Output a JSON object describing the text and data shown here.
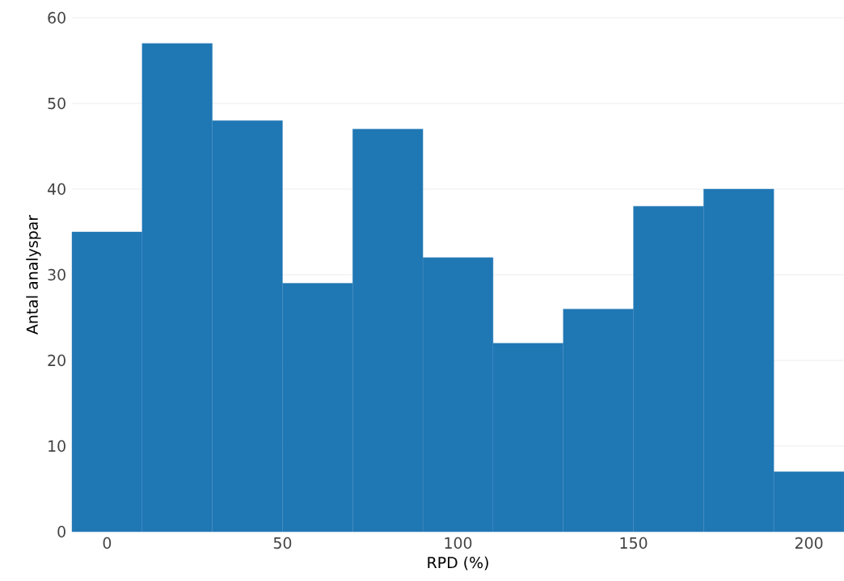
{
  "chart_data": {
    "type": "histogram",
    "xlabel": "RPD (%)",
    "ylabel": "Antal analyspar",
    "bins": [
      -10,
      10,
      30,
      50,
      70,
      90,
      110,
      130,
      150,
      170,
      190,
      210
    ],
    "values": [
      35,
      57,
      48,
      29,
      47,
      32,
      22,
      26,
      38,
      40,
      7
    ],
    "color": "#1f77b4",
    "xlim": [
      -10,
      210
    ],
    "ylim": [
      0,
      60
    ],
    "xticks": [
      0,
      50,
      100,
      150,
      200
    ],
    "yticks": [
      0,
      10,
      20,
      30,
      40,
      50,
      60
    ],
    "grid": "y"
  }
}
